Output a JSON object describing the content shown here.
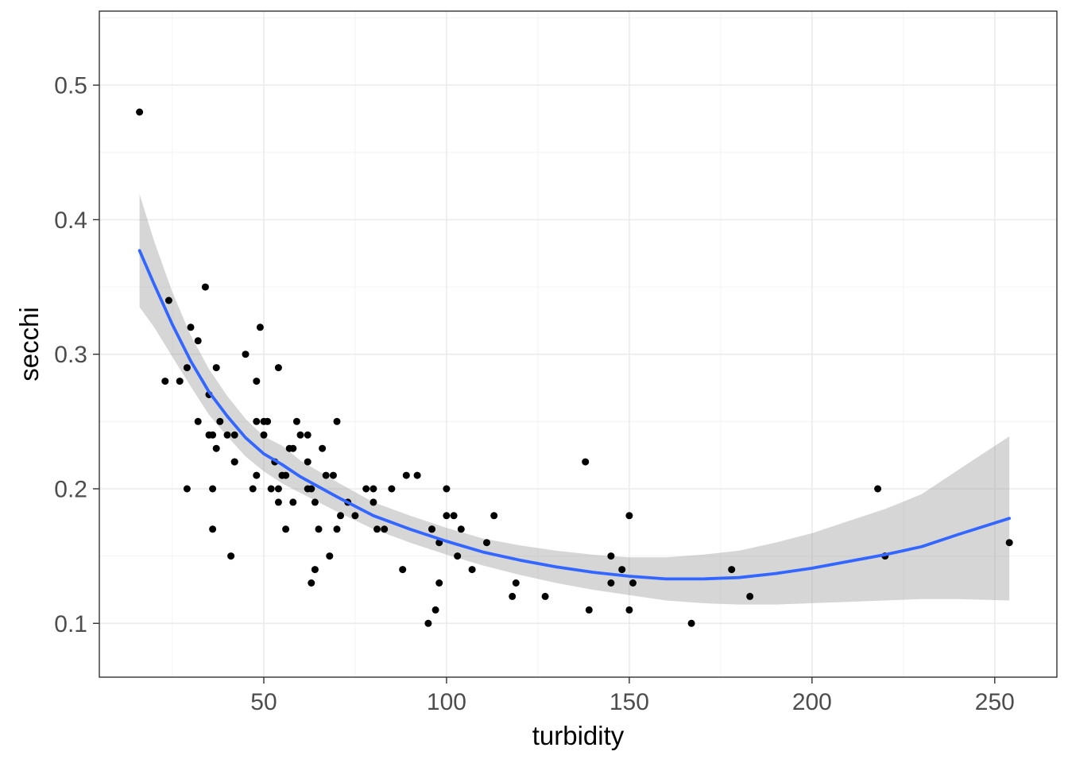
{
  "chart_data": {
    "type": "scatter",
    "title": "",
    "xlabel": "turbidity",
    "ylabel": "secchi",
    "xlim": [
      5,
      267
    ],
    "ylim": [
      0.06,
      0.555
    ],
    "x_ticks": [
      50,
      100,
      150,
      200,
      250
    ],
    "x_tick_labels": [
      "50",
      "100",
      "150",
      "200",
      "250"
    ],
    "y_ticks": [
      0.1,
      0.2,
      0.3,
      0.4,
      0.5
    ],
    "y_tick_labels": [
      "0.1",
      "0.2",
      "0.3",
      "0.4",
      "0.5"
    ],
    "grid": true,
    "theme": "bw",
    "colors": {
      "points": "#000000",
      "smooth_line": "#3366FF",
      "ribbon": "#999999",
      "grid_major": "#EBEBEB",
      "grid_minor": "#F5F5F5",
      "panel_border": "#333333"
    },
    "points": [
      [
        16,
        0.48
      ],
      [
        24,
        0.34
      ],
      [
        23,
        0.28
      ],
      [
        27,
        0.28
      ],
      [
        29,
        0.29
      ],
      [
        30,
        0.32
      ],
      [
        32,
        0.31
      ],
      [
        32,
        0.25
      ],
      [
        29,
        0.2
      ],
      [
        34,
        0.35
      ],
      [
        35,
        0.27
      ],
      [
        35,
        0.24
      ],
      [
        36,
        0.24
      ],
      [
        36,
        0.2
      ],
      [
        36,
        0.17
      ],
      [
        37,
        0.23
      ],
      [
        37,
        0.29
      ],
      [
        38,
        0.25
      ],
      [
        40,
        0.24
      ],
      [
        41,
        0.15
      ],
      [
        42,
        0.24
      ],
      [
        42,
        0.22
      ],
      [
        42,
        0.22
      ],
      [
        45,
        0.3
      ],
      [
        47,
        0.2
      ],
      [
        48,
        0.28
      ],
      [
        48,
        0.25
      ],
      [
        48,
        0.21
      ],
      [
        49,
        0.32
      ],
      [
        50,
        0.25
      ],
      [
        50,
        0.24
      ],
      [
        51,
        0.25
      ],
      [
        52,
        0.2
      ],
      [
        53,
        0.22
      ],
      [
        54,
        0.29
      ],
      [
        54,
        0.2
      ],
      [
        54,
        0.19
      ],
      [
        55,
        0.21
      ],
      [
        56,
        0.21
      ],
      [
        56,
        0.17
      ],
      [
        57,
        0.23
      ],
      [
        58,
        0.23
      ],
      [
        58,
        0.19
      ],
      [
        59,
        0.25
      ],
      [
        60,
        0.24
      ],
      [
        62,
        0.24
      ],
      [
        62,
        0.22
      ],
      [
        62,
        0.2
      ],
      [
        63,
        0.2
      ],
      [
        63,
        0.13
      ],
      [
        64,
        0.14
      ],
      [
        64,
        0.19
      ],
      [
        65,
        0.17
      ],
      [
        66,
        0.23
      ],
      [
        67,
        0.21
      ],
      [
        68,
        0.15
      ],
      [
        69,
        0.21
      ],
      [
        70,
        0.25
      ],
      [
        70,
        0.17
      ],
      [
        71,
        0.18
      ],
      [
        73,
        0.19
      ],
      [
        75,
        0.18
      ],
      [
        78,
        0.2
      ],
      [
        80,
        0.2
      ],
      [
        80,
        0.19
      ],
      [
        81,
        0.17
      ],
      [
        83,
        0.17
      ],
      [
        85,
        0.2
      ],
      [
        88,
        0.14
      ],
      [
        89,
        0.21
      ],
      [
        92,
        0.21
      ],
      [
        95,
        0.1
      ],
      [
        96,
        0.17
      ],
      [
        96,
        0.17
      ],
      [
        97,
        0.11
      ],
      [
        98,
        0.16
      ],
      [
        98,
        0.13
      ],
      [
        100,
        0.18
      ],
      [
        100,
        0.2
      ],
      [
        102,
        0.18
      ],
      [
        103,
        0.15
      ],
      [
        104,
        0.17
      ],
      [
        107,
        0.14
      ],
      [
        111,
        0.16
      ],
      [
        113,
        0.18
      ],
      [
        118,
        0.12
      ],
      [
        119,
        0.13
      ],
      [
        127,
        0.12
      ],
      [
        138,
        0.22
      ],
      [
        139,
        0.11
      ],
      [
        145,
        0.15
      ],
      [
        145,
        0.13
      ],
      [
        148,
        0.14
      ],
      [
        150,
        0.18
      ],
      [
        150,
        0.11
      ],
      [
        151,
        0.13
      ],
      [
        167,
        0.1
      ],
      [
        178,
        0.14
      ],
      [
        183,
        0.12
      ],
      [
        218,
        0.2
      ],
      [
        220,
        0.15
      ],
      [
        254,
        0.16
      ]
    ],
    "smooth": {
      "method": "loess",
      "x": [
        16,
        20,
        25,
        30,
        35,
        40,
        45,
        50,
        55,
        60,
        70,
        80,
        90,
        100,
        110,
        120,
        130,
        140,
        150,
        160,
        170,
        180,
        190,
        200,
        210,
        220,
        230,
        240,
        254
      ],
      "fit": [
        0.377,
        0.352,
        0.322,
        0.295,
        0.272,
        0.254,
        0.238,
        0.226,
        0.218,
        0.209,
        0.194,
        0.18,
        0.17,
        0.161,
        0.153,
        0.147,
        0.142,
        0.138,
        0.135,
        0.133,
        0.133,
        0.134,
        0.137,
        0.141,
        0.146,
        0.151,
        0.157,
        0.166,
        0.178
      ],
      "lower": [
        0.335,
        0.32,
        0.298,
        0.276,
        0.255,
        0.239,
        0.224,
        0.213,
        0.204,
        0.197,
        0.183,
        0.17,
        0.16,
        0.151,
        0.143,
        0.136,
        0.13,
        0.125,
        0.121,
        0.117,
        0.115,
        0.114,
        0.114,
        0.115,
        0.116,
        0.117,
        0.118,
        0.118,
        0.117
      ],
      "upper": [
        0.419,
        0.384,
        0.346,
        0.314,
        0.289,
        0.269,
        0.252,
        0.239,
        0.232,
        0.221,
        0.205,
        0.19,
        0.18,
        0.171,
        0.163,
        0.158,
        0.154,
        0.151,
        0.149,
        0.149,
        0.151,
        0.154,
        0.16,
        0.167,
        0.176,
        0.185,
        0.196,
        0.214,
        0.239
      ]
    }
  }
}
